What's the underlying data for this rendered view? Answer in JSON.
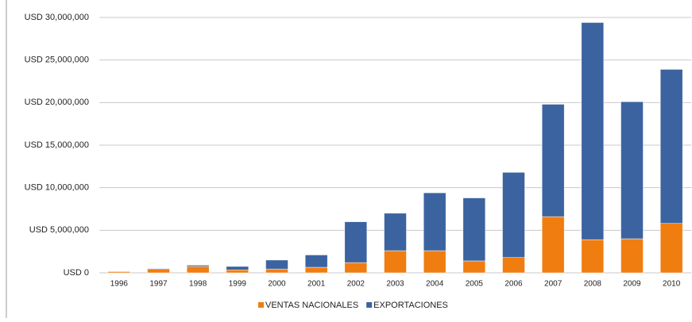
{
  "chart_data": {
    "type": "stacked_bar",
    "categories": [
      "1996",
      "1997",
      "1998",
      "1999",
      "2000",
      "2001",
      "2002",
      "2003",
      "2004",
      "2005",
      "2006",
      "2007",
      "2008",
      "2009",
      "2010"
    ],
    "series": [
      {
        "name": "VENTAS NACIONALES",
        "color": "#f07d10",
        "values": [
          150000,
          400000,
          750000,
          350000,
          450000,
          650000,
          1200000,
          2600000,
          2600000,
          1400000,
          1800000,
          6600000,
          3900000,
          4000000,
          5800000
        ]
      },
      {
        "name": "EXPORTACIONES",
        "color": "#3b63a0",
        "values": [
          50000,
          100000,
          150000,
          400000,
          1050000,
          1450000,
          4800000,
          4400000,
          6800000,
          7400000,
          10000000,
          13200000,
          25500000,
          16100000,
          18100000
        ]
      }
    ],
    "ylim": [
      0,
      30000000
    ],
    "yticks": [
      {
        "value": 0,
        "label": "USD 0"
      },
      {
        "value": 5000000,
        "label": "USD 5,000,000"
      },
      {
        "value": 10000000,
        "label": "USD 10,000,000"
      },
      {
        "value": 15000000,
        "label": "USD 15,000,000"
      },
      {
        "value": 20000000,
        "label": "USD 20,000,000"
      },
      {
        "value": 25000000,
        "label": "USD 25,000,000"
      },
      {
        "value": 30000000,
        "label": "USD 30,000,000"
      }
    ],
    "grid": true,
    "legend": "bottom"
  }
}
